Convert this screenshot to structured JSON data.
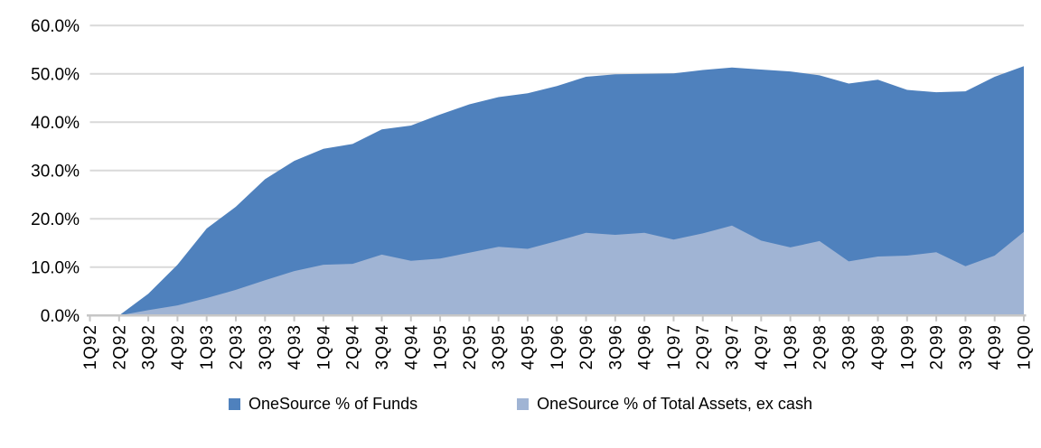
{
  "chart_data": {
    "type": "area",
    "title": "",
    "xlabel": "",
    "ylabel": "",
    "overlapping": true,
    "grid": true,
    "legend_position": "bottom",
    "ylim": [
      0,
      60
    ],
    "ytick_step": 10,
    "ytick_labels": [
      "0.0%",
      "10.0%",
      "20.0%",
      "30.0%",
      "40.0%",
      "50.0%",
      "60.0%"
    ],
    "categories": [
      "1Q92",
      "2Q92",
      "3Q92",
      "4Q92",
      "1Q93",
      "2Q93",
      "3Q93",
      "4Q93",
      "1Q94",
      "2Q94",
      "3Q94",
      "4Q94",
      "1Q95",
      "2Q95",
      "3Q95",
      "4Q95",
      "1Q96",
      "2Q96",
      "3Q96",
      "4Q96",
      "1Q97",
      "2Q97",
      "3Q97",
      "4Q97",
      "1Q98",
      "2Q98",
      "3Q98",
      "4Q98",
      "1Q99",
      "2Q99",
      "3Q99",
      "4Q99",
      "1Q00"
    ],
    "series": [
      {
        "name": "OneSource % of Funds",
        "color": "#4f81bd",
        "values": [
          0.0,
          0.0,
          4.5,
          10.5,
          18.0,
          22.5,
          28.2,
          32.0,
          34.5,
          35.5,
          38.5,
          39.3,
          41.6,
          43.7,
          45.2,
          46.0,
          47.5,
          49.4,
          49.9,
          50.0,
          50.1,
          50.8,
          51.3,
          50.9,
          50.5,
          49.7,
          48.0,
          48.8,
          46.7,
          46.2,
          46.4,
          49.4,
          51.6
        ]
      },
      {
        "name": "OneSource % of Total Assets, ex cash",
        "color": "#a0b4d4",
        "values": [
          0.0,
          0.0,
          1.1,
          2.1,
          3.6,
          5.3,
          7.3,
          9.2,
          10.5,
          10.7,
          12.6,
          11.3,
          11.8,
          13.0,
          14.2,
          13.8,
          15.4,
          17.1,
          16.7,
          17.1,
          15.7,
          17.0,
          18.6,
          15.5,
          14.1,
          15.4,
          11.2,
          12.2,
          12.4,
          13.1,
          10.2,
          12.4,
          17.3
        ]
      }
    ]
  },
  "colors": {
    "background": "#ffffff",
    "gridline": "#d9d9d9",
    "axis": "#c6c6c6",
    "text": "#000000"
  }
}
